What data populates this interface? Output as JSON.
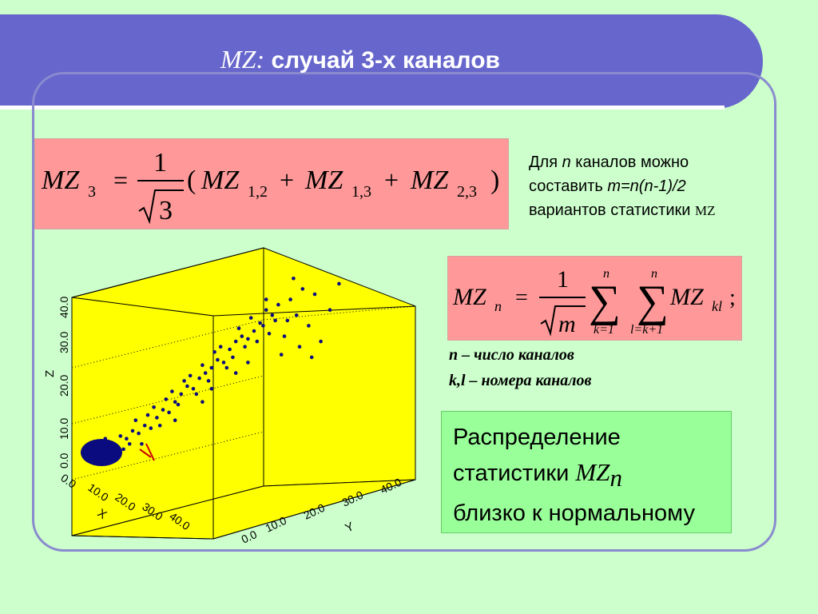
{
  "title": {
    "mz": "MZ:",
    "text": " случай 3-х каналов"
  },
  "formula1": {
    "lhs": "MZ",
    "lhs_sub": "3",
    "eq": "=",
    "num": "1",
    "den": "3",
    "lparen": "(",
    "rparen": ")",
    "t1": "MZ",
    "t1_sub": "1,2",
    "plus1": "+",
    "t2": "MZ",
    "t2_sub": "1,3",
    "plus2": "+",
    "t3": "MZ",
    "t3_sub": "2,3"
  },
  "side_note": {
    "line1_a": "Для ",
    "line1_n": "n",
    "line1_b": " каналов можно",
    "line2_a": "составить ",
    "line2_m": "m=n(n-1)/2",
    "line3_a": "вариантов статистики ",
    "line3_mz": "MZ"
  },
  "formula2": {
    "lhs": "MZ",
    "lhs_sub": "n",
    "eq": "=",
    "num": "1",
    "den": "m",
    "sum1_top": "n",
    "sum1_bottom": "k=1",
    "sum2_top": "n",
    "sum2_bottom": "l=k+1",
    "rhs": "MZ",
    "rhs_sub": "kl",
    "semicolon": ";"
  },
  "legend": {
    "line1": "n – число каналов",
    "line2": "k,l – номера каналов"
  },
  "conclusion": {
    "line1": "Распределение",
    "line2_a": "статистики ",
    "line2_mz": "MZ",
    "line2_sub": "n",
    "line3": "близко к нормальному"
  },
  "chart_data": {
    "type": "scatter",
    "dimensions": 3,
    "z_ticks": [
      "0.0",
      "10.0",
      "20.0",
      "30.0",
      "40.0"
    ],
    "x_ticks": [
      "0.0",
      "10.0",
      "20.0",
      "30.0",
      "40.0"
    ],
    "y_ticks": [
      "0.0",
      "10.0",
      "20.0",
      "30.0",
      "40.0"
    ],
    "zlabel": "Z",
    "xlabel": "X",
    "ylabel": "Y",
    "background": "#ffff00",
    "point_color": "#0b0b80",
    "arrow_color": "#cc0000",
    "points_2d": [
      [
        0.1,
        0.27
      ],
      [
        0.12,
        0.29
      ],
      [
        0.09,
        0.25
      ],
      [
        0.13,
        0.31
      ],
      [
        0.15,
        0.3
      ],
      [
        0.11,
        0.33
      ],
      [
        0.14,
        0.26
      ],
      [
        0.16,
        0.34
      ],
      [
        0.18,
        0.33
      ],
      [
        0.17,
        0.29
      ],
      [
        0.2,
        0.36
      ],
      [
        0.22,
        0.35
      ],
      [
        0.19,
        0.31
      ],
      [
        0.24,
        0.38
      ],
      [
        0.21,
        0.4
      ],
      [
        0.26,
        0.37
      ],
      [
        0.25,
        0.42
      ],
      [
        0.28,
        0.41
      ],
      [
        0.3,
        0.44
      ],
      [
        0.27,
        0.45
      ],
      [
        0.32,
        0.43
      ],
      [
        0.31,
        0.48
      ],
      [
        0.34,
        0.47
      ],
      [
        0.33,
        0.51
      ],
      [
        0.36,
        0.5
      ],
      [
        0.35,
        0.46
      ],
      [
        0.38,
        0.53
      ],
      [
        0.37,
        0.55
      ],
      [
        0.4,
        0.52
      ],
      [
        0.39,
        0.57
      ],
      [
        0.42,
        0.56
      ],
      [
        0.41,
        0.5
      ],
      [
        0.44,
        0.58
      ],
      [
        0.43,
        0.61
      ],
      [
        0.46,
        0.6
      ],
      [
        0.45,
        0.55
      ],
      [
        0.48,
        0.63
      ],
      [
        0.47,
        0.66
      ],
      [
        0.5,
        0.62
      ],
      [
        0.49,
        0.68
      ],
      [
        0.52,
        0.67
      ],
      [
        0.51,
        0.6
      ],
      [
        0.54,
        0.7
      ],
      [
        0.53,
        0.64
      ],
      [
        0.56,
        0.72
      ],
      [
        0.55,
        0.75
      ],
      [
        0.58,
        0.71
      ],
      [
        0.57,
        0.68
      ],
      [
        0.6,
        0.74
      ],
      [
        0.59,
        0.79
      ],
      [
        0.62,
        0.77
      ],
      [
        0.61,
        0.7
      ],
      [
        0.64,
        0.82
      ],
      [
        0.63,
        0.76
      ],
      [
        0.66,
        0.8
      ],
      [
        0.65,
        0.73
      ],
      [
        0.68,
        0.84
      ],
      [
        0.67,
        0.78
      ],
      [
        0.7,
        0.72
      ],
      [
        0.72,
        0.86
      ],
      [
        0.74,
        0.8
      ],
      [
        0.76,
        0.9
      ],
      [
        0.78,
        0.76
      ],
      [
        0.8,
        0.88
      ],
      [
        0.82,
        0.7
      ],
      [
        0.75,
        0.68
      ],
      [
        0.71,
        0.78
      ],
      [
        0.69,
        0.65
      ],
      [
        0.58,
        0.62
      ],
      [
        0.46,
        0.52
      ],
      [
        0.29,
        0.38
      ],
      [
        0.23,
        0.31
      ],
      [
        0.85,
        0.82
      ],
      [
        0.88,
        0.92
      ],
      [
        0.73,
        0.94
      ],
      [
        0.79,
        0.64
      ],
      [
        0.64,
        0.86
      ],
      [
        0.54,
        0.58
      ],
      [
        0.43,
        0.47
      ],
      [
        0.34,
        0.4
      ]
    ]
  }
}
